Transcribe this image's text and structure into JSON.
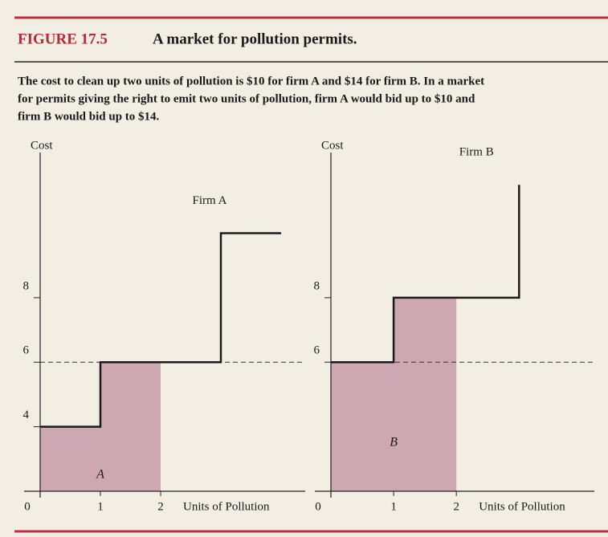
{
  "header": {
    "figure": "FIGURE 17.5",
    "title": "A market for pollution permits.",
    "caption": [
      "The cost to clean up two units of pollution is $10 for firm A and $14 for firm B. In a market",
      "for permits giving the right to emit two units of pollution, firm A would bid up to $10 and",
      "firm B would bid up to $14."
    ]
  },
  "chart_data": [
    {
      "type": "line",
      "y_label": "Cost",
      "x_label": "Units of Pollution",
      "series_name": "Firm A",
      "area_label": "A",
      "x": [
        0,
        1,
        1,
        3,
        3,
        4
      ],
      "values": [
        4,
        4,
        6,
        6,
        10,
        10
      ],
      "color": "#1a1a1a",
      "shade_color": "#c79aa8",
      "shaded_xlim": [
        0,
        2
      ],
      "reference_line": 6,
      "xlim": [
        0,
        4.4
      ],
      "ylim": [
        2,
        12.5
      ],
      "xticks": [
        0,
        1,
        2
      ],
      "yticks": [
        4,
        6,
        8
      ]
    },
    {
      "type": "line",
      "y_label": "Cost",
      "x_label": "Units of Pollution",
      "series_name": "Firm B",
      "area_label": "B",
      "x": [
        0,
        1,
        1,
        3,
        3
      ],
      "values": [
        6,
        6,
        8,
        8,
        11.5
      ],
      "color": "#1a1a1a",
      "shade_color": "#c79aa8",
      "shaded_xlim": [
        0,
        2
      ],
      "reference_line": 6,
      "xlim": [
        0,
        4.2
      ],
      "ylim": [
        2,
        12.5
      ],
      "xticks": [
        0,
        1,
        2
      ],
      "yticks": [
        6,
        8
      ]
    }
  ]
}
